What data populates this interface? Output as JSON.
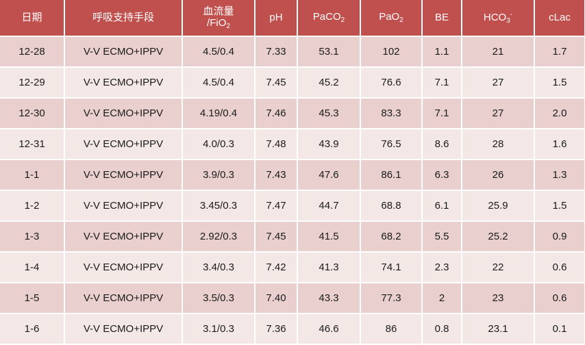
{
  "table": {
    "headers": {
      "date": "日期",
      "support": "呼吸支持手段",
      "flow_line1": "血流量",
      "flow_line2_prefix": "/FiO",
      "flow_line2_sub": "2",
      "ph": "pH",
      "paco2_prefix": "PaCO",
      "paco2_sub": "2",
      "pao2_prefix": "PaO",
      "pao2_sub": "2",
      "be": "BE",
      "hco3_prefix": "HCO",
      "hco3_sub": "3",
      "hco3_sup": "-",
      "clac": "cLac"
    },
    "rows": [
      {
        "date": "12-28",
        "support": "V-V ECMO+IPPV",
        "flow": "4.5/0.4",
        "ph": "7.33",
        "paco2": "53.1",
        "pao2": "102",
        "be": "1.1",
        "hco3": "21",
        "clac": "1.7"
      },
      {
        "date": "12-29",
        "support": "V-V ECMO+IPPV",
        "flow": "4.5/0.4",
        "ph": "7.45",
        "paco2": "45.2",
        "pao2": "76.6",
        "be": "7.1",
        "hco3": "27",
        "clac": "1.5"
      },
      {
        "date": "12-30",
        "support": "V-V ECMO+IPPV",
        "flow": "4.19/0.4",
        "ph": "7.46",
        "paco2": "45.3",
        "pao2": "83.3",
        "be": "7.1",
        "hco3": "27",
        "clac": "2.0"
      },
      {
        "date": "12-31",
        "support": "V-V ECMO+IPPV",
        "flow": "4.0/0.3",
        "ph": "7.48",
        "paco2": "43.9",
        "pao2": "76.5",
        "be": "8.6",
        "hco3": "28",
        "clac": "1.6"
      },
      {
        "date": "1-1",
        "support": "V-V ECMO+IPPV",
        "flow": "3.9/0.3",
        "ph": "7.43",
        "paco2": "47.6",
        "pao2": "86.1",
        "be": "6.3",
        "hco3": "26",
        "clac": "1.3"
      },
      {
        "date": "1-2",
        "support": "V-V ECMO+IPPV",
        "flow": "3.45/0.3",
        "ph": "7.47",
        "paco2": "44.7",
        "pao2": "68.8",
        "be": "6.1",
        "hco3": "25.9",
        "clac": "1.5"
      },
      {
        "date": "1-3",
        "support": "V-V ECMO+IPPV",
        "flow": "2.92/0.3",
        "ph": "7.45",
        "paco2": "41.5",
        "pao2": "68.2",
        "be": "5.5",
        "hco3": "25.2",
        "clac": "0.9"
      },
      {
        "date": "1-4",
        "support": "V-V ECMO+IPPV",
        "flow": "3.4/0.3",
        "ph": "7.42",
        "paco2": "41.3",
        "pao2": "74.1",
        "be": "2.3",
        "hco3": "22",
        "clac": "0.6"
      },
      {
        "date": "1-5",
        "support": "V-V ECMO+IPPV",
        "flow": "3.5/0.3",
        "ph": "7.40",
        "paco2": "43.3",
        "pao2": "77.3",
        "be": "2",
        "hco3": "23",
        "clac": "0.6"
      },
      {
        "date": "1-6",
        "support": "V-V ECMO+IPPV",
        "flow": "3.1/0.3",
        "ph": "7.36",
        "paco2": "46.6",
        "pao2": "86",
        "be": "0.8",
        "hco3": "23.1",
        "clac": "0.1"
      }
    ]
  },
  "colors": {
    "header_bg": "#c0504d",
    "row_odd_bg": "#e9cfce",
    "row_even_bg": "#f4e8e7"
  }
}
